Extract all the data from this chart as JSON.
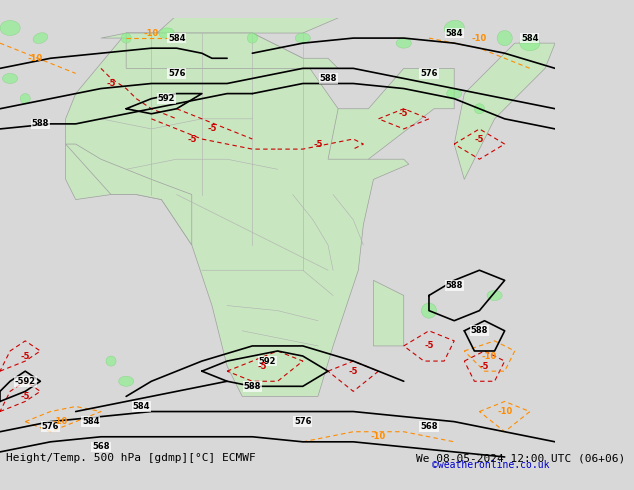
{
  "title_left": "Height/Temp. 500 hPa [gdmp][°C] ECMWF",
  "title_right": "We 08-05-2024 12:00 UTC (06+06)",
  "credit": "©weatheronline.co.uk",
  "background_land": "#c8e6c0",
  "background_sea": "#e8e8e8",
  "contour_color": "#000000",
  "temp_neg_color": "#cc0000",
  "temp_orange_color": "#ff8c00",
  "border_color": "#a0a0a0",
  "label_fontsize": 7,
  "title_fontsize": 8,
  "credit_fontsize": 7,
  "credit_color": "#0000cc"
}
